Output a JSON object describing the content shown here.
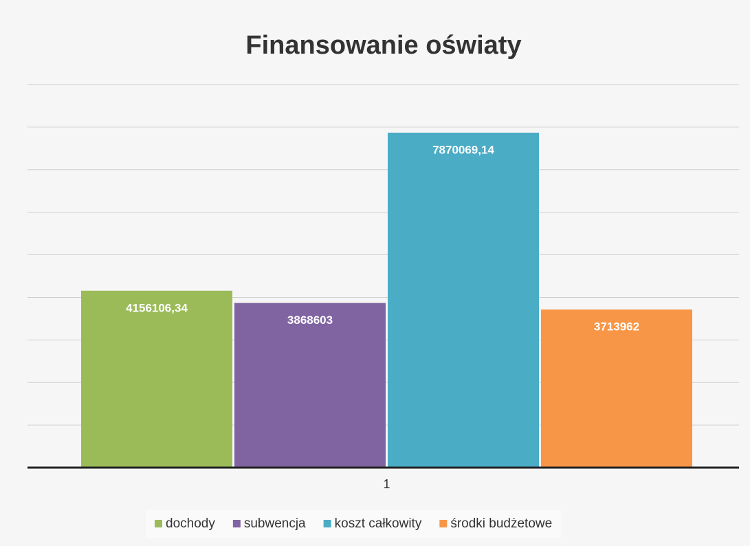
{
  "chart_data": {
    "type": "bar",
    "title": "Finansowanie oświaty",
    "categories": [
      "1"
    ],
    "series": [
      {
        "name": "dochody",
        "color": "#9bbb59",
        "values": [
          4156106.34
        ],
        "value_labels": [
          "4156106,34"
        ]
      },
      {
        "name": "subwencja",
        "color": "#8064a2",
        "values": [
          3868603
        ],
        "value_labels": [
          "3868603"
        ]
      },
      {
        "name": "koszt całkowity",
        "color": "#4bacc6",
        "values": [
          7870069.14
        ],
        "value_labels": [
          "7870069,14"
        ]
      },
      {
        "name": "środki budżetowe",
        "color": "#f79646",
        "values": [
          3713962
        ],
        "value_labels": [
          "3713962"
        ]
      }
    ],
    "ylim": [
      0,
      9000000
    ],
    "yticks": [
      0,
      1000000,
      2000000,
      3000000,
      4000000,
      5000000,
      6000000,
      7000000,
      8000000,
      9000000
    ],
    "grid": true,
    "legend": "bottom"
  }
}
